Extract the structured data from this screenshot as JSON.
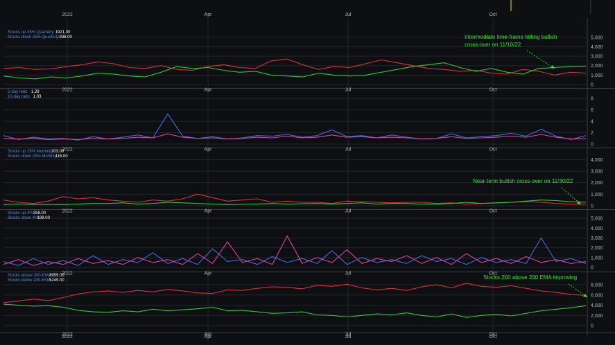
{
  "colors": {
    "background": "#0e0f13",
    "grid": "#23252c",
    "green": "#2ecc2e",
    "red": "#e03030",
    "blue": "#3f6fe0",
    "magenta": "#e040a0",
    "legend_label": "#4f8fd6",
    "annotation": "#2ee62e"
  },
  "x_axis": {
    "months": [
      "2022",
      "Apr",
      "Jul",
      "Oct"
    ]
  },
  "chart_data": [
    {
      "type": "line",
      "legend": [
        {
          "label": "Stocks up 25% Quarterly",
          "value": "1921.00"
        },
        {
          "label": "Stocks down 25% Quarterly",
          "value": "936.00"
        }
      ],
      "yticks": [
        "0",
        "1,000",
        "2,000",
        "3,000",
        "4,000",
        "5,000"
      ],
      "ylim": [
        0,
        5500
      ],
      "annotation": [
        "Intermediate time-frame hitting bullish",
        "cross-over on 11/10/22"
      ],
      "series": [
        {
          "color": "red",
          "values": [
            1700,
            1800,
            1600,
            1650,
            1900,
            2100,
            2400,
            2200,
            1800,
            1700,
            2000,
            1600,
            1500,
            1900,
            2100,
            1800,
            1700,
            2500,
            2700,
            2100,
            1600,
            1900,
            1800,
            2200,
            2600,
            2300,
            2000,
            1700,
            1600,
            1400,
            1500,
            1200,
            1100,
            1600,
            1400,
            1000,
            1300,
            1200
          ]
        },
        {
          "color": "green",
          "values": [
            900,
            700,
            600,
            800,
            700,
            900,
            1200,
            1100,
            900,
            800,
            1300,
            1900,
            1700,
            1800,
            1500,
            1300,
            1400,
            1000,
            900,
            800,
            1200,
            1000,
            900,
            1000,
            1300,
            1600,
            1900,
            2100,
            2300,
            1800,
            1400,
            1700,
            1300,
            1100,
            1700,
            1800,
            1900,
            1950
          ]
        }
      ]
    },
    {
      "type": "line",
      "legend": [
        {
          "label": "5-day ratio",
          "value": "1.29"
        },
        {
          "label": "10-day ratio",
          "value": "1.03"
        }
      ],
      "yticks": [
        "0",
        "2",
        "4",
        "6",
        "8"
      ],
      "ylim": [
        0,
        9
      ],
      "series": [
        {
          "color": "blue",
          "values": [
            1.5,
            0.8,
            1.2,
            0.9,
            1.0,
            0.7,
            1.3,
            0.9,
            1.2,
            1.6,
            1.1,
            5.3,
            1.4,
            1.0,
            1.3,
            0.9,
            1.1,
            1.5,
            1.4,
            1.7,
            1.2,
            1.5,
            2.5,
            1.3,
            1.5,
            1.1,
            1.6,
            1.2,
            0.9,
            1.0,
            1.8,
            1.1,
            1.3,
            1.5,
            1.9,
            1.4,
            2.6,
            1.4,
            0.8,
            1.5
          ]
        },
        {
          "color": "magenta",
          "values": [
            1.0,
            0.9,
            1.0,
            0.8,
            0.9,
            0.8,
            1.0,
            0.9,
            1.0,
            1.2,
            1.1,
            1.8,
            1.2,
            1.0,
            1.1,
            0.9,
            1.0,
            1.2,
            1.1,
            1.4,
            1.1,
            1.2,
            1.6,
            1.2,
            1.3,
            1.1,
            1.2,
            1.1,
            0.9,
            1.0,
            1.3,
            1.0,
            1.1,
            1.2,
            1.4,
            1.2,
            1.7,
            1.2,
            0.9,
            1.0
          ]
        }
      ]
    },
    {
      "type": "line",
      "legend": [
        {
          "label": "Stocks up 25% Monthly",
          "value": "303.00"
        },
        {
          "label": "Stocks down 25% Monthly",
          "value": "116.00"
        }
      ],
      "yticks": [
        "0",
        "1,000",
        "2,000",
        "3,000",
        "4,000"
      ],
      "ylim": [
        0,
        4500
      ],
      "annotation": [
        "Near-term bullish cross-over on 11/30/22"
      ],
      "series": [
        {
          "color": "red",
          "values": [
            500,
            300,
            200,
            400,
            800,
            600,
            700,
            500,
            400,
            300,
            500,
            400,
            600,
            1000,
            700,
            400,
            500,
            600,
            300,
            400,
            300,
            300,
            200,
            400,
            350,
            300,
            250,
            300,
            300,
            200,
            250,
            150,
            200,
            250,
            300,
            350,
            300,
            200,
            150,
            120
          ]
        },
        {
          "color": "green",
          "values": [
            100,
            150,
            100,
            120,
            100,
            150,
            200,
            200,
            250,
            150,
            200,
            300,
            250,
            200,
            150,
            100,
            120,
            150,
            200,
            150,
            180,
            200,
            150,
            200,
            250,
            150,
            200,
            200,
            150,
            150,
            200,
            300,
            200,
            250,
            300,
            400,
            500,
            450,
            350,
            300
          ]
        }
      ]
    },
    {
      "type": "line",
      "legend": [
        {
          "label": "Stocks up 4%",
          "value": "358.00"
        },
        {
          "label": "Stocks down 4%",
          "value": "199.00"
        }
      ],
      "yticks": [
        "0",
        "1,000",
        "2,000",
        "3,000",
        "4,000",
        "5,000"
      ],
      "ylim": [
        0,
        5500
      ],
      "series": [
        {
          "color": "blue",
          "values": [
            600,
            200,
            900,
            300,
            700,
            200,
            1200,
            300,
            800,
            500,
            1500,
            400,
            900,
            300,
            1900,
            600,
            800,
            300,
            1100,
            500,
            900,
            400,
            1700,
            300,
            1000,
            500,
            800,
            400,
            1200,
            600,
            900,
            300,
            1000,
            500,
            800,
            400,
            3000,
            600,
            900,
            400
          ]
        },
        {
          "color": "magenta",
          "values": [
            300,
            800,
            200,
            600,
            300,
            900,
            400,
            700,
            300,
            1000,
            500,
            800,
            300,
            1400,
            400,
            2600,
            500,
            900,
            300,
            3200,
            400,
            1000,
            500,
            1800,
            400,
            900,
            600,
            1200,
            400,
            1000,
            300,
            1400,
            500,
            900,
            400,
            1100,
            500,
            800,
            400,
            600
          ]
        }
      ]
    },
    {
      "type": "line",
      "legend": [
        {
          "label": "Stocks above 200-EMA",
          "value": "3959.00"
        },
        {
          "label": "Stocks below 200-EMA",
          "value": "5249.00"
        }
      ],
      "yticks": [
        "0",
        "2,000",
        "4,000",
        "6,000",
        "8,000"
      ],
      "ylim": [
        0,
        9500
      ],
      "annotation": [
        "Stocks 200 above 200 EMA  improving"
      ],
      "series": [
        {
          "color": "red",
          "values": [
            4500,
            4800,
            5200,
            4900,
            5500,
            6200,
            6600,
            6800,
            6500,
            6900,
            6600,
            7100,
            6800,
            6400,
            6300,
            7000,
            6900,
            7300,
            7600,
            7500,
            7200,
            7900,
            7700,
            8100,
            7400,
            7000,
            7300,
            6900,
            7600,
            8000,
            7400,
            8300,
            7700,
            7500,
            7800,
            7300,
            6800,
            6500,
            6100,
            5900
          ]
        },
        {
          "color": "green",
          "values": [
            4200,
            4000,
            3800,
            3900,
            3600,
            3000,
            2700,
            2600,
            2900,
            2700,
            3200,
            2900,
            3100,
            3300,
            3600,
            2900,
            3000,
            2700,
            2400,
            2500,
            2700,
            2100,
            2000,
            1700,
            2000,
            2300,
            2100,
            2500,
            2000,
            1700,
            2300,
            1600,
            2000,
            2200,
            1900,
            2400,
            2900,
            3200,
            3500,
            3900
          ]
        }
      ]
    }
  ]
}
